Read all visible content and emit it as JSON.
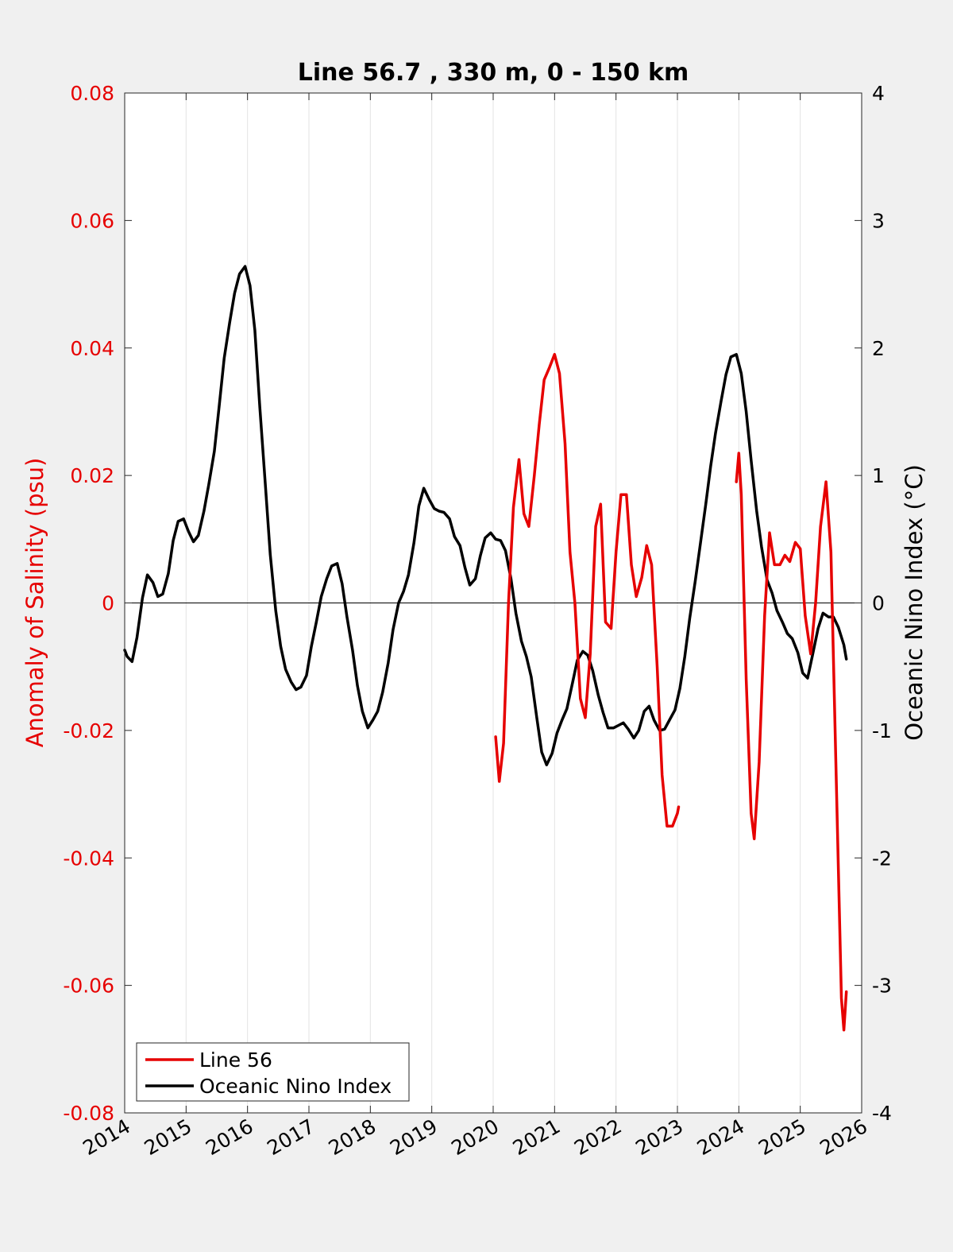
{
  "chart_data": {
    "type": "line",
    "title": "Line 56.7 , 330 m, 0 - 150 km",
    "xlim": [
      2014,
      2026
    ],
    "x_ticks": [
      "2014",
      "2015",
      "2016",
      "2017",
      "2018",
      "2019",
      "2020",
      "2021",
      "2022",
      "2023",
      "2024",
      "2025",
      "2026"
    ],
    "y_left": {
      "label": "Anomaly of Salinity (psu)",
      "range": [
        -0.08,
        0.08
      ],
      "ticks": [
        "-0.08",
        "-0.06",
        "-0.04",
        "-0.02",
        "0",
        "0.02",
        "0.04",
        "0.06",
        "0.08"
      ],
      "color": "#e60000"
    },
    "y_right": {
      "label": "Oceanic Nino Index (°C)",
      "range": [
        -4,
        4
      ],
      "ticks": [
        "-4",
        "-3",
        "-2",
        "-1",
        "0",
        "1",
        "2",
        "3",
        "4"
      ],
      "color": "#000000"
    },
    "grid": "vertical",
    "zero_line": true,
    "legend": {
      "placement": "bottom-left"
    },
    "series": [
      {
        "name": "Line 56",
        "axis": "left",
        "color": "#e60000",
        "segments": [
          [
            [
              2020.04,
              -0.021
            ],
            [
              2020.1,
              -0.028
            ],
            [
              2020.17,
              -0.022
            ],
            [
              2020.25,
              0.0
            ],
            [
              2020.33,
              0.015
            ],
            [
              2020.42,
              0.0225
            ],
            [
              2020.5,
              0.014
            ],
            [
              2020.58,
              0.012
            ],
            [
              2020.67,
              0.02
            ],
            [
              2020.75,
              0.028
            ],
            [
              2020.83,
              0.035
            ],
            [
              2020.92,
              0.037
            ],
            [
              2021.0,
              0.039
            ],
            [
              2021.08,
              0.036
            ],
            [
              2021.17,
              0.025
            ],
            [
              2021.25,
              0.008
            ],
            [
              2021.33,
              0.0
            ],
            [
              2021.42,
              -0.015
            ],
            [
              2021.5,
              -0.018
            ],
            [
              2021.58,
              -0.008
            ],
            [
              2021.67,
              0.012
            ],
            [
              2021.75,
              0.0155
            ],
            [
              2021.83,
              -0.003
            ],
            [
              2021.92,
              -0.004
            ],
            [
              2022.0,
              0.008
            ],
            [
              2022.08,
              0.017
            ],
            [
              2022.17,
              0.017
            ],
            [
              2022.25,
              0.006
            ],
            [
              2022.33,
              0.001
            ],
            [
              2022.42,
              0.004
            ],
            [
              2022.5,
              0.009
            ],
            [
              2022.58,
              0.006
            ],
            [
              2022.67,
              -0.01
            ],
            [
              2022.75,
              -0.027
            ],
            [
              2022.83,
              -0.035
            ],
            [
              2022.92,
              -0.035
            ],
            [
              2023.0,
              -0.033
            ],
            [
              2023.02,
              -0.032
            ]
          ],
          [
            [
              2023.96,
              0.019
            ],
            [
              2024.0,
              0.0235
            ],
            [
              2024.04,
              0.017
            ],
            [
              2024.12,
              -0.012
            ],
            [
              2024.2,
              -0.033
            ],
            [
              2024.25,
              -0.037
            ],
            [
              2024.33,
              -0.025
            ],
            [
              2024.42,
              -0.002
            ],
            [
              2024.5,
              0.011
            ],
            [
              2024.58,
              0.006
            ],
            [
              2024.67,
              0.006
            ],
            [
              2024.75,
              0.0075
            ],
            [
              2024.83,
              0.0065
            ],
            [
              2024.92,
              0.0095
            ],
            [
              2025.0,
              0.0085
            ],
            [
              2025.08,
              -0.002
            ],
            [
              2025.17,
              -0.008
            ],
            [
              2025.25,
              0.0
            ],
            [
              2025.33,
              0.012
            ],
            [
              2025.42,
              0.019
            ],
            [
              2025.5,
              0.008
            ],
            [
              2025.58,
              -0.025
            ],
            [
              2025.67,
              -0.062
            ],
            [
              2025.71,
              -0.067
            ],
            [
              2025.75,
              -0.061
            ]
          ]
        ]
      },
      {
        "name": "Oceanic Nino Index",
        "axis": "right",
        "color": "#000000",
        "points": [
          [
            2014.0,
            -0.37
          ],
          [
            2014.04,
            -0.42
          ],
          [
            2014.12,
            -0.46
          ],
          [
            2014.2,
            -0.27
          ],
          [
            2014.29,
            0.04
          ],
          [
            2014.37,
            0.22
          ],
          [
            2014.46,
            0.16
          ],
          [
            2014.54,
            0.05
          ],
          [
            2014.62,
            0.07
          ],
          [
            2014.71,
            0.23
          ],
          [
            2014.79,
            0.49
          ],
          [
            2014.87,
            0.64
          ],
          [
            2014.96,
            0.66
          ],
          [
            2015.04,
            0.56
          ],
          [
            2015.12,
            0.48
          ],
          [
            2015.2,
            0.53
          ],
          [
            2015.29,
            0.72
          ],
          [
            2015.37,
            0.93
          ],
          [
            2015.46,
            1.19
          ],
          [
            2015.54,
            1.55
          ],
          [
            2015.62,
            1.92
          ],
          [
            2015.71,
            2.2
          ],
          [
            2015.79,
            2.43
          ],
          [
            2015.87,
            2.58
          ],
          [
            2015.96,
            2.64
          ],
          [
            2016.04,
            2.49
          ],
          [
            2016.12,
            2.14
          ],
          [
            2016.2,
            1.54
          ],
          [
            2016.29,
            0.93
          ],
          [
            2016.37,
            0.38
          ],
          [
            2016.46,
            -0.06
          ],
          [
            2016.54,
            -0.34
          ],
          [
            2016.62,
            -0.52
          ],
          [
            2016.71,
            -0.62
          ],
          [
            2016.79,
            -0.68
          ],
          [
            2016.87,
            -0.66
          ],
          [
            2016.96,
            -0.57
          ],
          [
            2017.04,
            -0.34
          ],
          [
            2017.12,
            -0.15
          ],
          [
            2017.2,
            0.05
          ],
          [
            2017.29,
            0.19
          ],
          [
            2017.37,
            0.29
          ],
          [
            2017.46,
            0.31
          ],
          [
            2017.54,
            0.15
          ],
          [
            2017.62,
            -0.11
          ],
          [
            2017.71,
            -0.37
          ],
          [
            2017.79,
            -0.65
          ],
          [
            2017.87,
            -0.85
          ],
          [
            2017.96,
            -0.98
          ],
          [
            2018.04,
            -0.92
          ],
          [
            2018.12,
            -0.85
          ],
          [
            2018.2,
            -0.7
          ],
          [
            2018.29,
            -0.47
          ],
          [
            2018.37,
            -0.21
          ],
          [
            2018.46,
            0.0
          ],
          [
            2018.54,
            0.09
          ],
          [
            2018.62,
            0.22
          ],
          [
            2018.71,
            0.47
          ],
          [
            2018.79,
            0.76
          ],
          [
            2018.87,
            0.9
          ],
          [
            2018.96,
            0.81
          ],
          [
            2019.04,
            0.74
          ],
          [
            2019.12,
            0.72
          ],
          [
            2019.2,
            0.71
          ],
          [
            2019.29,
            0.66
          ],
          [
            2019.37,
            0.52
          ],
          [
            2019.46,
            0.45
          ],
          [
            2019.54,
            0.28
          ],
          [
            2019.62,
            0.14
          ],
          [
            2019.71,
            0.19
          ],
          [
            2019.79,
            0.37
          ],
          [
            2019.87,
            0.51
          ],
          [
            2019.96,
            0.55
          ],
          [
            2020.04,
            0.5
          ],
          [
            2020.12,
            0.49
          ],
          [
            2020.2,
            0.41
          ],
          [
            2020.29,
            0.19
          ],
          [
            2020.37,
            -0.08
          ],
          [
            2020.46,
            -0.3
          ],
          [
            2020.54,
            -0.42
          ],
          [
            2020.62,
            -0.58
          ],
          [
            2020.71,
            -0.9
          ],
          [
            2020.79,
            -1.17
          ],
          [
            2020.87,
            -1.27
          ],
          [
            2020.96,
            -1.18
          ],
          [
            2021.04,
            -1.02
          ],
          [
            2021.12,
            -0.92
          ],
          [
            2021.2,
            -0.83
          ],
          [
            2021.29,
            -0.63
          ],
          [
            2021.37,
            -0.45
          ],
          [
            2021.46,
            -0.38
          ],
          [
            2021.54,
            -0.41
          ],
          [
            2021.62,
            -0.53
          ],
          [
            2021.71,
            -0.72
          ],
          [
            2021.79,
            -0.86
          ],
          [
            2021.87,
            -0.98
          ],
          [
            2021.96,
            -0.98
          ],
          [
            2022.04,
            -0.96
          ],
          [
            2022.12,
            -0.94
          ],
          [
            2022.2,
            -0.99
          ],
          [
            2022.29,
            -1.06
          ],
          [
            2022.37,
            -1.0
          ],
          [
            2022.46,
            -0.85
          ],
          [
            2022.54,
            -0.81
          ],
          [
            2022.62,
            -0.92
          ],
          [
            2022.71,
            -1.0
          ],
          [
            2022.79,
            -0.99
          ],
          [
            2022.87,
            -0.92
          ],
          [
            2022.96,
            -0.84
          ],
          [
            2023.04,
            -0.67
          ],
          [
            2023.12,
            -0.42
          ],
          [
            2023.2,
            -0.12
          ],
          [
            2023.29,
            0.17
          ],
          [
            2023.37,
            0.45
          ],
          [
            2023.46,
            0.77
          ],
          [
            2023.54,
            1.07
          ],
          [
            2023.62,
            1.33
          ],
          [
            2023.71,
            1.58
          ],
          [
            2023.79,
            1.79
          ],
          [
            2023.87,
            1.93
          ],
          [
            2023.96,
            1.95
          ],
          [
            2024.04,
            1.8
          ],
          [
            2024.12,
            1.5
          ],
          [
            2024.2,
            1.12
          ],
          [
            2024.29,
            0.72
          ],
          [
            2024.37,
            0.44
          ],
          [
            2024.46,
            0.18
          ],
          [
            2024.54,
            0.08
          ],
          [
            2024.62,
            -0.06
          ],
          [
            2024.71,
            -0.15
          ],
          [
            2024.79,
            -0.24
          ],
          [
            2024.87,
            -0.28
          ],
          [
            2024.96,
            -0.39
          ],
          [
            2025.04,
            -0.55
          ],
          [
            2025.12,
            -0.59
          ],
          [
            2025.2,
            -0.41
          ],
          [
            2025.29,
            -0.2
          ],
          [
            2025.37,
            -0.08
          ],
          [
            2025.46,
            -0.11
          ],
          [
            2025.54,
            -0.11
          ],
          [
            2025.62,
            -0.19
          ],
          [
            2025.71,
            -0.33
          ],
          [
            2025.75,
            -0.44
          ]
        ]
      }
    ]
  }
}
